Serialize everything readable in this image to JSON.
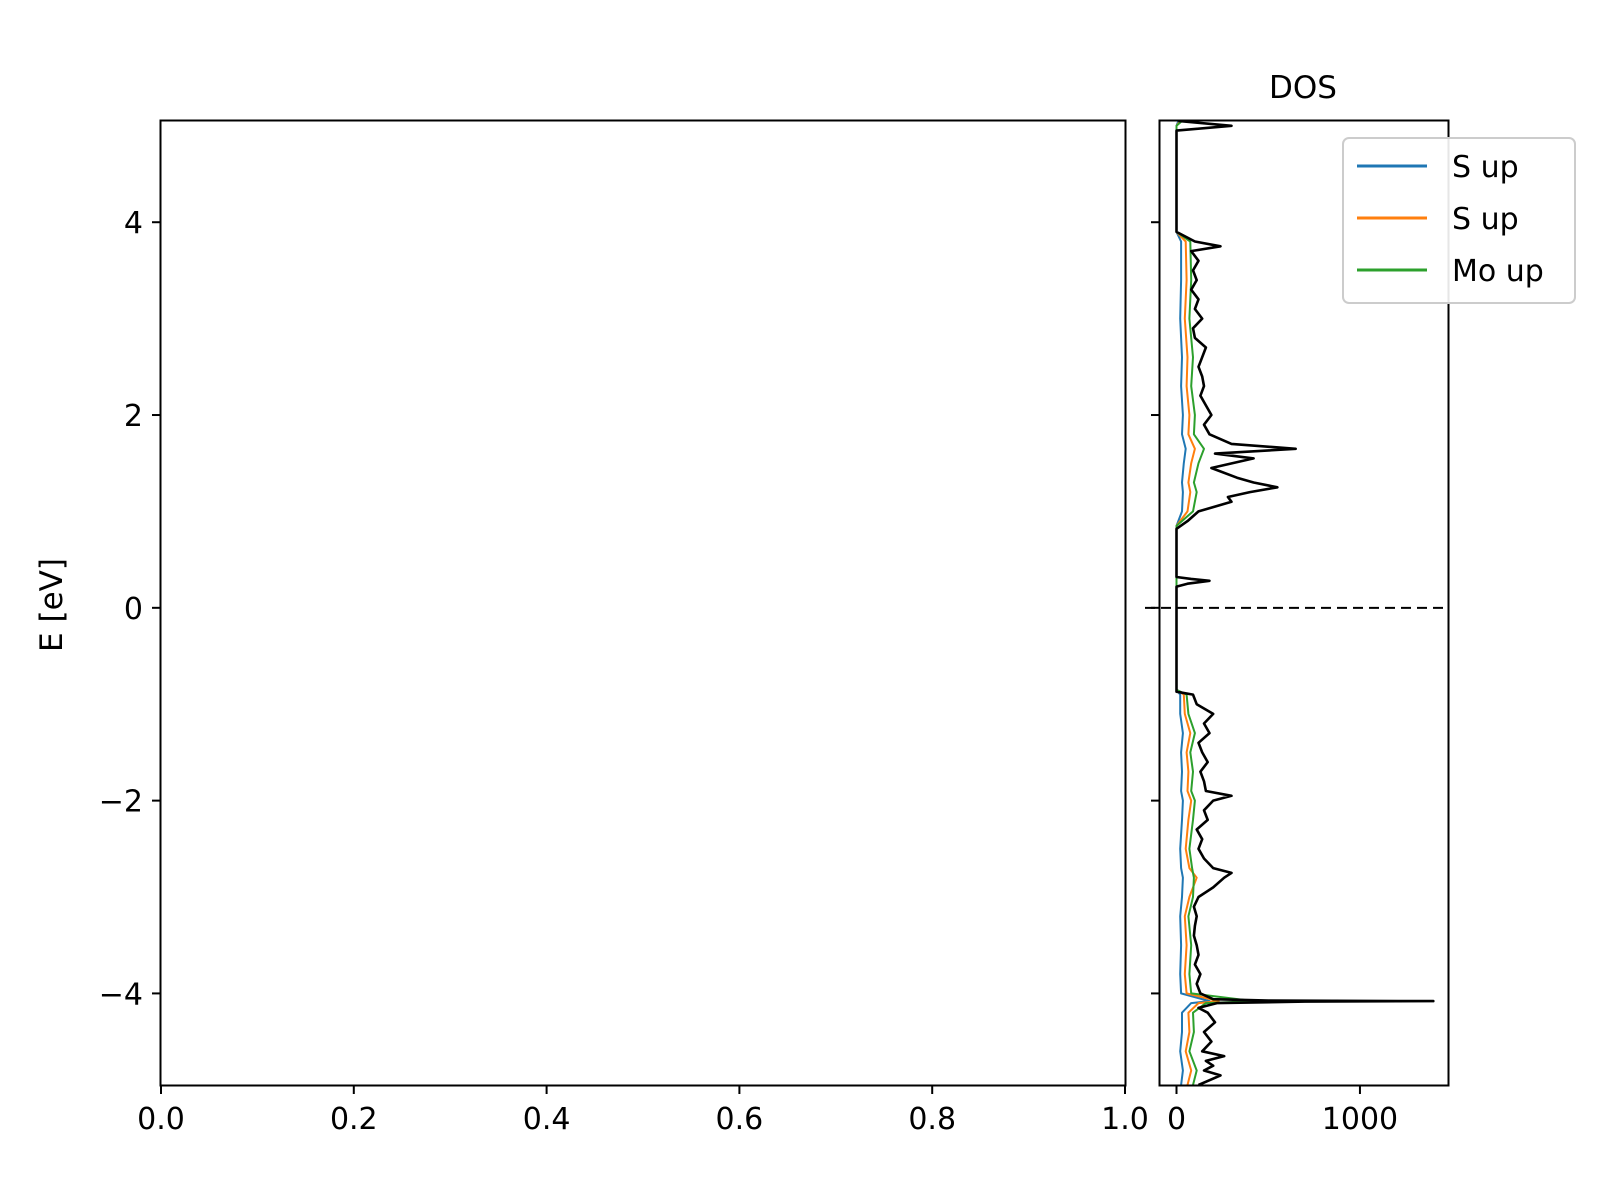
{
  "chart_data": [
    {
      "type": "line",
      "panel": "band-structure",
      "title": "",
      "xlabel": "",
      "ylabel": "E [eV]",
      "xlim": [
        0.0,
        1.0
      ],
      "ylim": [
        -4.95,
        5.05
      ],
      "x_ticks": [
        0.0,
        0.2,
        0.4,
        0.6,
        0.8,
        1.0
      ],
      "x_tick_labels": [
        "0.0",
        "0.2",
        "0.4",
        "0.6",
        "0.8",
        "1.0"
      ],
      "y_ticks": [
        -4,
        -2,
        0,
        2,
        4
      ],
      "y_tick_labels": [
        "−4",
        "−2",
        "0",
        "2",
        "4"
      ],
      "grid": false,
      "series": []
    },
    {
      "type": "line",
      "panel": "dos",
      "orientation": "horizontal",
      "title": "DOS",
      "xlabel": "",
      "ylabel": "",
      "xlim": [
        -90,
        1480
      ],
      "ylim": [
        -4.95,
        5.05
      ],
      "x_ticks": [
        0,
        1000
      ],
      "x_tick_labels": [
        "0",
        "1000"
      ],
      "y_ticks": [
        -4,
        -2,
        0,
        2,
        4
      ],
      "grid": false,
      "legend_position": "top-right",
      "fermi_level": 0,
      "series": [
        {
          "name": "S up",
          "color": "#1f77b4",
          "energy": [
            -4.95,
            -4.8,
            -4.6,
            -4.4,
            -4.2,
            -4.1,
            -4.08,
            -4.0,
            -3.8,
            -3.5,
            -3.2,
            -3.0,
            -2.8,
            -2.7,
            -2.5,
            -2.2,
            -2.0,
            -1.9,
            -1.7,
            -1.5,
            -1.3,
            -1.1,
            -0.9,
            -0.85,
            0.25,
            0.3,
            0.85,
            1.0,
            1.2,
            1.3,
            1.5,
            1.65,
            1.8,
            2.0,
            2.3,
            2.6,
            3.0,
            3.4,
            3.8,
            3.9,
            5.0,
            5.05
          ],
          "dos": [
            25,
            35,
            20,
            30,
            30,
            80,
            180,
            25,
            20,
            25,
            20,
            30,
            35,
            25,
            20,
            30,
            35,
            25,
            30,
            25,
            35,
            20,
            20,
            0,
            0,
            0,
            0,
            30,
            35,
            30,
            40,
            50,
            30,
            35,
            25,
            30,
            20,
            25,
            25,
            0,
            0,
            10
          ]
        },
        {
          "name": "S up",
          "color": "#ff7f0e",
          "energy": [
            -4.95,
            -4.8,
            -4.6,
            -4.4,
            -4.2,
            -4.1,
            -4.08,
            -4.0,
            -3.8,
            -3.5,
            -3.2,
            -3.0,
            -2.8,
            -2.7,
            -2.5,
            -2.2,
            -2.0,
            -1.9,
            -1.7,
            -1.5,
            -1.3,
            -1.1,
            -0.9,
            -0.85,
            0.25,
            0.3,
            0.85,
            1.0,
            1.2,
            1.3,
            1.5,
            1.65,
            1.8,
            2.0,
            2.3,
            2.6,
            3.0,
            3.4,
            3.8,
            3.9,
            5.0,
            5.05
          ],
          "dos": [
            60,
            80,
            50,
            70,
            65,
            120,
            230,
            55,
            45,
            55,
            45,
            70,
            110,
            70,
            50,
            65,
            80,
            60,
            65,
            55,
            75,
            45,
            40,
            0,
            0,
            0,
            0,
            60,
            75,
            65,
            80,
            100,
            65,
            70,
            55,
            60,
            45,
            55,
            50,
            0,
            0,
            20
          ]
        },
        {
          "name": "Mo up",
          "color": "#2ca02c",
          "energy": [
            -4.95,
            -4.8,
            -4.6,
            -4.4,
            -4.2,
            -4.1,
            -4.08,
            -4.0,
            -3.8,
            -3.5,
            -3.2,
            -3.0,
            -2.8,
            -2.7,
            -2.5,
            -2.2,
            -2.0,
            -1.9,
            -1.7,
            -1.5,
            -1.3,
            -1.1,
            -0.9,
            -0.85,
            0.25,
            0.3,
            0.85,
            1.0,
            1.2,
            1.3,
            1.5,
            1.65,
            1.8,
            2.0,
            2.3,
            2.6,
            3.0,
            3.4,
            3.8,
            3.9,
            5.0,
            5.05
          ],
          "dos": [
            90,
            110,
            70,
            95,
            90,
            160,
            420,
            80,
            70,
            80,
            65,
            90,
            95,
            85,
            70,
            90,
            100,
            80,
            90,
            75,
            100,
            65,
            55,
            0,
            0,
            0,
            0,
            90,
            110,
            95,
            120,
            150,
            95,
            100,
            80,
            90,
            70,
            80,
            75,
            0,
            0,
            30
          ]
        },
        {
          "name": "",
          "color": "#000000",
          "energy": [
            -4.95,
            -4.85,
            -4.8,
            -4.75,
            -4.7,
            -4.65,
            -4.6,
            -4.5,
            -4.4,
            -4.3,
            -4.2,
            -4.15,
            -4.1,
            -4.085,
            -4.08,
            -4.075,
            -4.06,
            -4.0,
            -3.9,
            -3.8,
            -3.7,
            -3.6,
            -3.5,
            -3.4,
            -3.3,
            -3.2,
            -3.1,
            -3.0,
            -2.9,
            -2.8,
            -2.75,
            -2.7,
            -2.6,
            -2.5,
            -2.4,
            -2.3,
            -2.2,
            -2.1,
            -2.0,
            -1.95,
            -1.9,
            -1.8,
            -1.7,
            -1.6,
            -1.5,
            -1.4,
            -1.3,
            -1.2,
            -1.1,
            -1.0,
            -0.9,
            -0.87,
            0.22,
            0.25,
            0.28,
            0.3,
            0.32,
            0.82,
            0.9,
            1.0,
            1.1,
            1.15,
            1.2,
            1.25,
            1.3,
            1.35,
            1.45,
            1.55,
            1.6,
            1.65,
            1.7,
            1.8,
            1.9,
            2.0,
            2.1,
            2.2,
            2.3,
            2.4,
            2.5,
            2.6,
            2.7,
            2.8,
            2.9,
            3.0,
            3.1,
            3.2,
            3.3,
            3.4,
            3.5,
            3.6,
            3.7,
            3.75,
            3.8,
            3.9,
            4.95,
            5.0,
            5.05
          ],
          "dos": [
            120,
            240,
            150,
            200,
            160,
            260,
            140,
            190,
            150,
            210,
            170,
            120,
            220,
            700,
            1400,
            500,
            200,
            130,
            110,
            130,
            100,
            120,
            110,
            95,
            100,
            110,
            95,
            120,
            200,
            260,
            300,
            200,
            150,
            120,
            140,
            110,
            170,
            150,
            200,
            300,
            160,
            150,
            130,
            170,
            140,
            120,
            180,
            150,
            200,
            110,
            90,
            0,
            0,
            60,
            180,
            80,
            0,
            0,
            60,
            120,
            300,
            280,
            400,
            550,
            420,
            330,
            190,
            420,
            210,
            650,
            300,
            180,
            150,
            190,
            160,
            130,
            150,
            140,
            120,
            140,
            160,
            100,
            90,
            140,
            100,
            120,
            80,
            110,
            90,
            120,
            80,
            240,
            100,
            0,
            0,
            300,
            10
          ]
        }
      ]
    }
  ]
}
